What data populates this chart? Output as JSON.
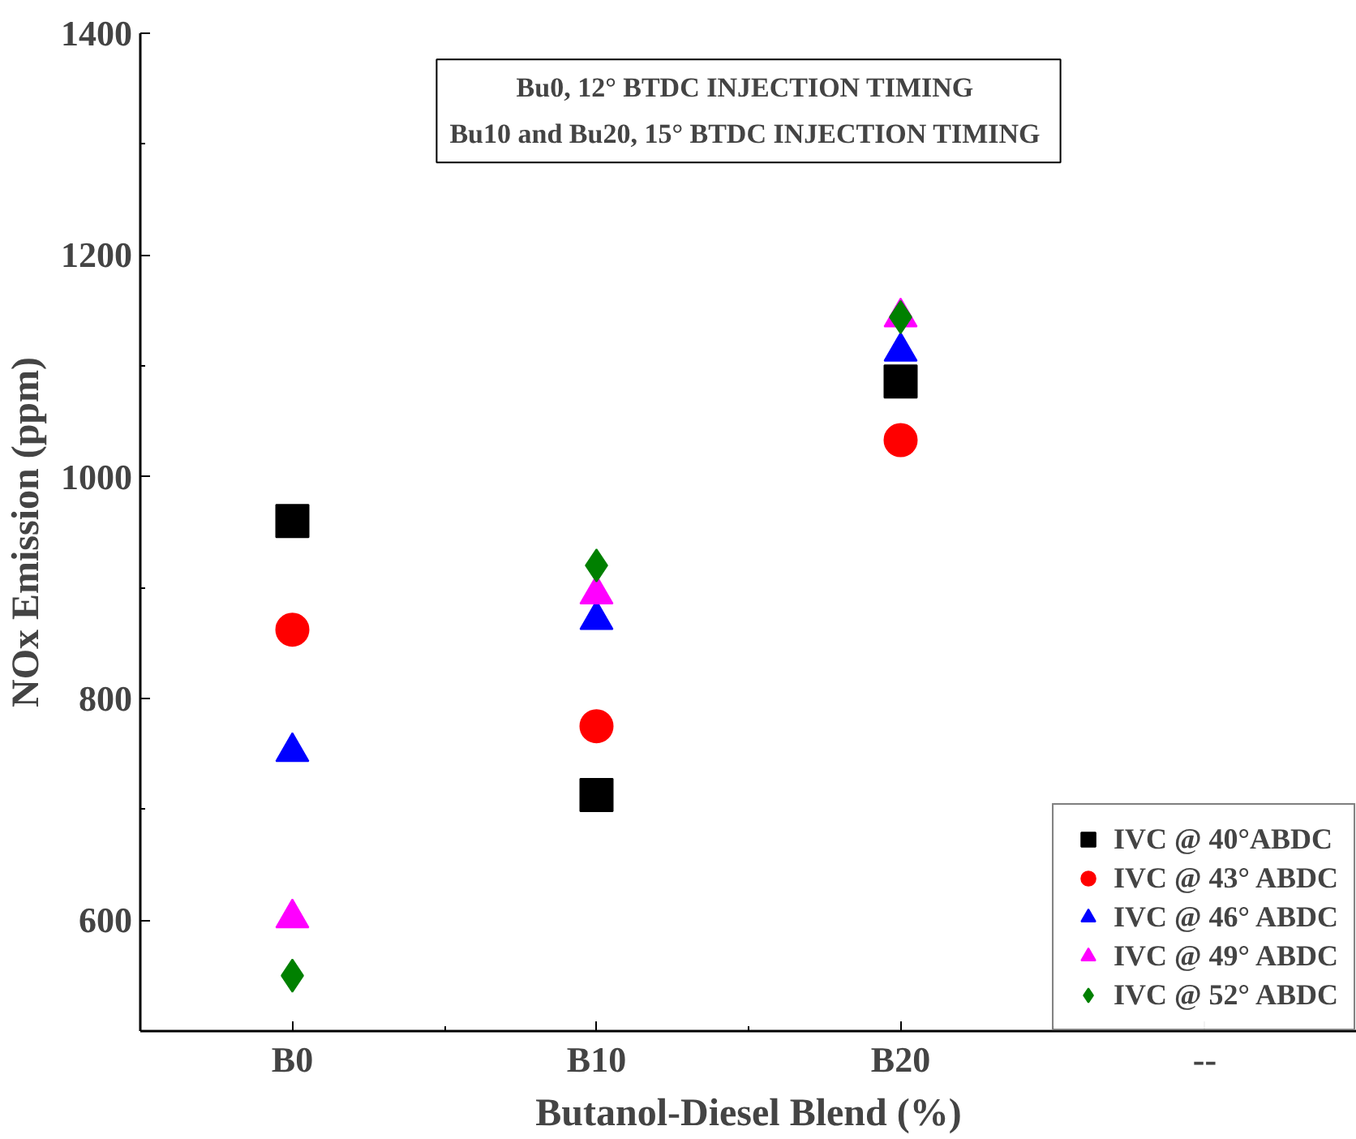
{
  "chart_data": {
    "type": "scatter",
    "xlabel": "Butanol-Diesel Blend (%)",
    "ylabel": "NOx Emission (ppm)",
    "categories": [
      "B0",
      "B10",
      "B20",
      "--"
    ],
    "ylim": [
      500,
      1400
    ],
    "yticks": [
      600,
      800,
      1000,
      1200,
      1400
    ],
    "grid": false,
    "legend": "bottom right",
    "annotations": [
      "Bu0, 12° BTDC  INJECTION TIMING",
      "Bu10 and Bu20,  15° BTDC INJECTION TIMING"
    ],
    "series": [
      {
        "name": "IVC @ 40°ABDC",
        "color": "#000000",
        "marker": "square",
        "values": [
          960,
          713,
          1086,
          null
        ]
      },
      {
        "name": "IVC @ 43° ABDC",
        "color": "#ff0000",
        "marker": "circle",
        "values": [
          862,
          775,
          1033,
          null
        ]
      },
      {
        "name": "IVC @ 46° ABDC",
        "color": "#0000ff",
        "marker": "triangle",
        "values": [
          752,
          871,
          1113,
          null
        ]
      },
      {
        "name": "IVC @ 49° ABDC",
        "color": "#ff00ff",
        "marker": "triangle",
        "values": [
          602,
          894,
          1144,
          null
        ]
      },
      {
        "name": "IVC @ 52° ABDC",
        "color": "#008000",
        "marker": "diamond",
        "values": [
          550,
          920,
          1144,
          null
        ]
      }
    ]
  }
}
